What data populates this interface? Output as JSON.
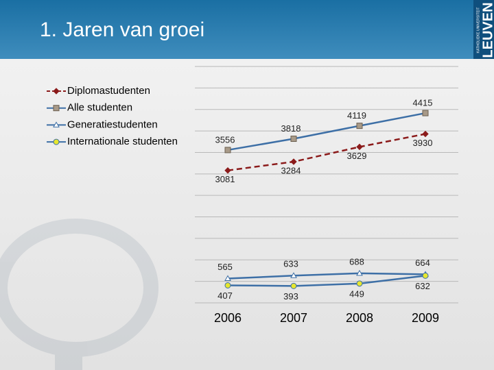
{
  "header": {
    "title": "1. Jaren van groei",
    "logo": "LEUVEN",
    "logo_small": "KATHOLIEKE UNIVERSITEIT"
  },
  "chart_data": {
    "type": "line",
    "categories": [
      "2006",
      "2007",
      "2008",
      "2009"
    ],
    "series": [
      {
        "name": "Diplomastudenten",
        "color": "#8b1a1a",
        "marker": "diamond",
        "marker_color": "#8b1a1a",
        "dashed": true,
        "values": [
          3081,
          3284,
          3629,
          3930
        ]
      },
      {
        "name": "Alle studenten",
        "color": "#3d6fa6",
        "marker": "square",
        "marker_color": "#a89a88",
        "dashed": false,
        "values": [
          3556,
          3818,
          4119,
          4415
        ]
      },
      {
        "name": "Generatiestudenten",
        "color": "#3d6fa6",
        "marker": "triangle",
        "marker_color": "#ffffff",
        "dashed": false,
        "values": [
          565,
          633,
          688,
          664
        ]
      },
      {
        "name": "Internationale studenten",
        "color": "#3d6fa6",
        "marker": "circle",
        "marker_color": "#e6e62e",
        "dashed": false,
        "values": [
          407,
          393,
          449,
          632
        ]
      }
    ],
    "ylim": [
      0,
      5500
    ],
    "yticks": [
      0,
      500,
      1000,
      1500,
      2000,
      2500,
      3000,
      3500,
      4000,
      4500,
      5000,
      5500
    ],
    "grid": true,
    "legend": "top-left"
  }
}
